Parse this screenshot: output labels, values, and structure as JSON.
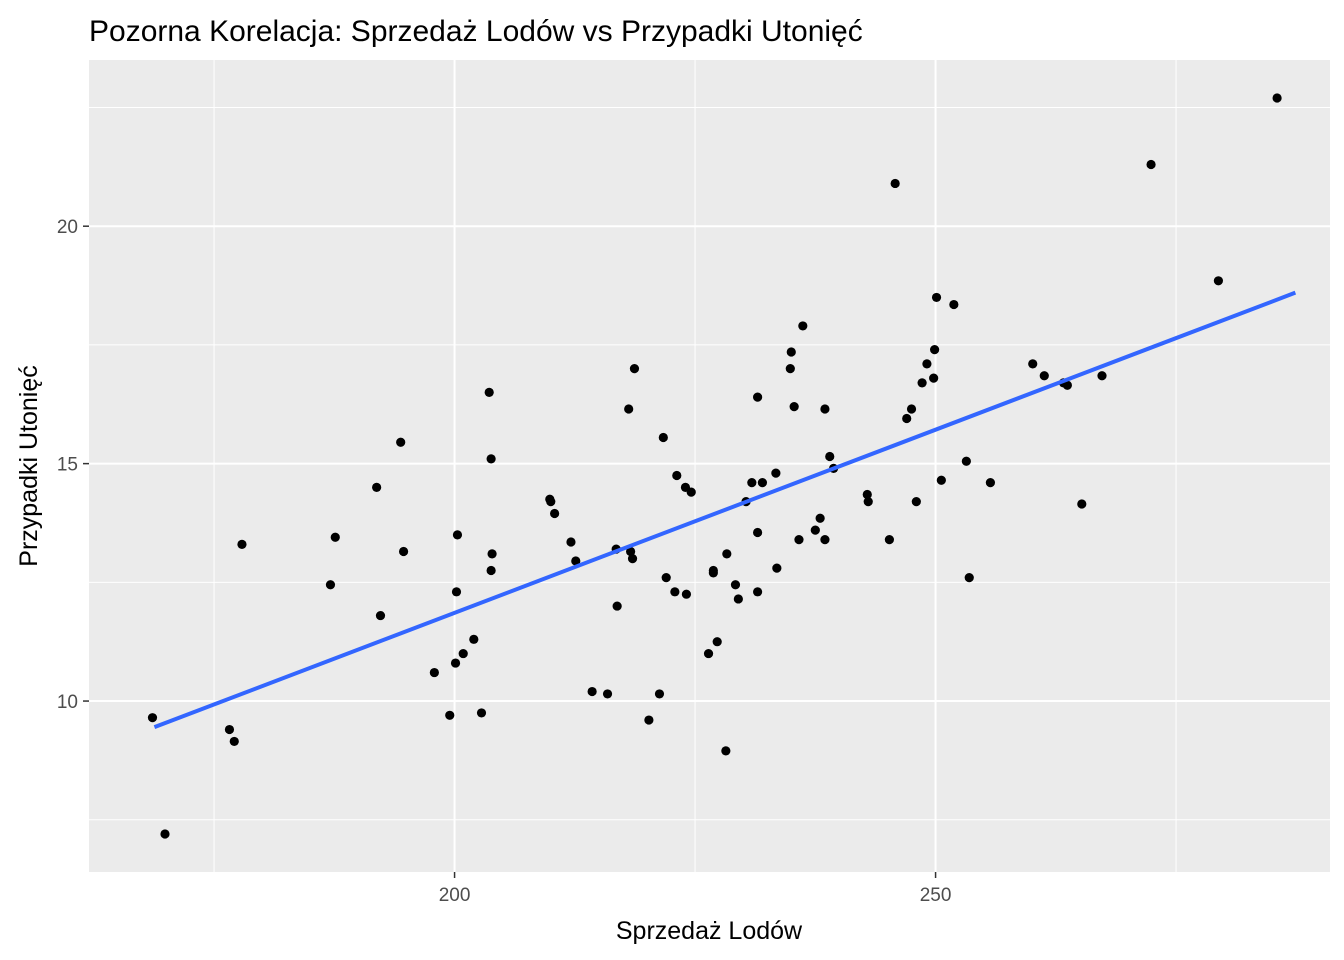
{
  "chart_data": {
    "type": "scatter",
    "title": "Pozorna Korelacja: Sprzedaż Lodów vs Przypadki Utonięć",
    "xlabel": "Sprzedaż Lodów",
    "ylabel": "Przypadki Utonięć",
    "xlim": [
      162,
      291
    ],
    "ylim": [
      6.4,
      23.5
    ],
    "x_ticks": [
      200,
      250
    ],
    "y_ticks": [
      10,
      15,
      20
    ],
    "grid": true,
    "trend_line": {
      "method": "linear",
      "x": [
        168.8,
        287.4
      ],
      "y": [
        9.45,
        18.6
      ]
    },
    "colors": {
      "panel": "#ebebeb",
      "grid": "#ffffff",
      "points": "#000000",
      "trend": "#3366ff"
    },
    "points": [
      {
        "x": 168.6,
        "y": 9.65
      },
      {
        "x": 169.9,
        "y": 7.2
      },
      {
        "x": 176.6,
        "y": 9.4
      },
      {
        "x": 177.1,
        "y": 9.15
      },
      {
        "x": 177.9,
        "y": 13.3
      },
      {
        "x": 187.1,
        "y": 12.45
      },
      {
        "x": 187.6,
        "y": 13.45
      },
      {
        "x": 191.9,
        "y": 14.5
      },
      {
        "x": 192.3,
        "y": 11.8
      },
      {
        "x": 194.4,
        "y": 15.45
      },
      {
        "x": 194.7,
        "y": 13.15
      },
      {
        "x": 197.9,
        "y": 10.6
      },
      {
        "x": 199.5,
        "y": 9.7
      },
      {
        "x": 200.1,
        "y": 10.8
      },
      {
        "x": 200.2,
        "y": 12.3
      },
      {
        "x": 200.3,
        "y": 13.5
      },
      {
        "x": 200.9,
        "y": 11.0
      },
      {
        "x": 202.0,
        "y": 11.3
      },
      {
        "x": 202.8,
        "y": 9.75
      },
      {
        "x": 203.6,
        "y": 16.5
      },
      {
        "x": 203.8,
        "y": 15.1
      },
      {
        "x": 203.8,
        "y": 12.75
      },
      {
        "x": 203.9,
        "y": 13.1
      },
      {
        "x": 209.9,
        "y": 14.25
      },
      {
        "x": 210.0,
        "y": 14.2
      },
      {
        "x": 210.4,
        "y": 13.95
      },
      {
        "x": 212.1,
        "y": 13.35
      },
      {
        "x": 212.6,
        "y": 12.95
      },
      {
        "x": 214.3,
        "y": 10.2
      },
      {
        "x": 215.9,
        "y": 10.15
      },
      {
        "x": 216.8,
        "y": 13.2
      },
      {
        "x": 216.9,
        "y": 12.0
      },
      {
        "x": 218.1,
        "y": 16.15
      },
      {
        "x": 218.3,
        "y": 13.15
      },
      {
        "x": 218.7,
        "y": 17.0
      },
      {
        "x": 218.5,
        "y": 13.0
      },
      {
        "x": 220.2,
        "y": 9.6
      },
      {
        "x": 221.3,
        "y": 10.15
      },
      {
        "x": 221.7,
        "y": 15.55
      },
      {
        "x": 222.0,
        "y": 12.6
      },
      {
        "x": 222.9,
        "y": 12.3
      },
      {
        "x": 223.1,
        "y": 14.75
      },
      {
        "x": 224.0,
        "y": 14.5
      },
      {
        "x": 224.1,
        "y": 12.25
      },
      {
        "x": 224.6,
        "y": 14.4
      },
      {
        "x": 226.4,
        "y": 11.0
      },
      {
        "x": 226.9,
        "y": 12.75
      },
      {
        "x": 226.9,
        "y": 12.7
      },
      {
        "x": 227.3,
        "y": 11.25
      },
      {
        "x": 228.2,
        "y": 8.95
      },
      {
        "x": 228.3,
        "y": 13.1
      },
      {
        "x": 229.2,
        "y": 12.45
      },
      {
        "x": 229.5,
        "y": 12.15
      },
      {
        "x": 230.3,
        "y": 14.2
      },
      {
        "x": 230.9,
        "y": 14.6
      },
      {
        "x": 231.5,
        "y": 13.55
      },
      {
        "x": 231.5,
        "y": 12.3
      },
      {
        "x": 231.5,
        "y": 16.4
      },
      {
        "x": 232.0,
        "y": 14.6
      },
      {
        "x": 233.4,
        "y": 14.8
      },
      {
        "x": 233.5,
        "y": 12.8
      },
      {
        "x": 235.0,
        "y": 17.35
      },
      {
        "x": 234.9,
        "y": 17.0
      },
      {
        "x": 235.3,
        "y": 16.2
      },
      {
        "x": 235.8,
        "y": 13.4
      },
      {
        "x": 236.2,
        "y": 17.9
      },
      {
        "x": 237.5,
        "y": 13.6
      },
      {
        "x": 238.0,
        "y": 13.85
      },
      {
        "x": 238.5,
        "y": 16.15
      },
      {
        "x": 238.5,
        "y": 13.4
      },
      {
        "x": 239.0,
        "y": 15.15
      },
      {
        "x": 239.4,
        "y": 14.9
      },
      {
        "x": 242.9,
        "y": 14.35
      },
      {
        "x": 243.0,
        "y": 14.2
      },
      {
        "x": 245.2,
        "y": 13.4
      },
      {
        "x": 245.8,
        "y": 20.9
      },
      {
        "x": 247.0,
        "y": 15.95
      },
      {
        "x": 247.5,
        "y": 16.15
      },
      {
        "x": 248.0,
        "y": 14.2
      },
      {
        "x": 248.6,
        "y": 16.7
      },
      {
        "x": 249.1,
        "y": 17.1
      },
      {
        "x": 249.8,
        "y": 16.8
      },
      {
        "x": 249.9,
        "y": 17.4
      },
      {
        "x": 250.1,
        "y": 18.5
      },
      {
        "x": 250.6,
        "y": 14.65
      },
      {
        "x": 251.9,
        "y": 18.35
      },
      {
        "x": 253.2,
        "y": 15.05
      },
      {
        "x": 253.5,
        "y": 12.6
      },
      {
        "x": 255.7,
        "y": 14.6
      },
      {
        "x": 260.1,
        "y": 17.1
      },
      {
        "x": 261.3,
        "y": 16.85
      },
      {
        "x": 263.3,
        "y": 16.7
      },
      {
        "x": 263.7,
        "y": 16.65
      },
      {
        "x": 265.2,
        "y": 14.15
      },
      {
        "x": 267.3,
        "y": 16.85
      },
      {
        "x": 272.4,
        "y": 21.3
      },
      {
        "x": 279.4,
        "y": 18.85
      },
      {
        "x": 285.5,
        "y": 22.7
      }
    ]
  }
}
